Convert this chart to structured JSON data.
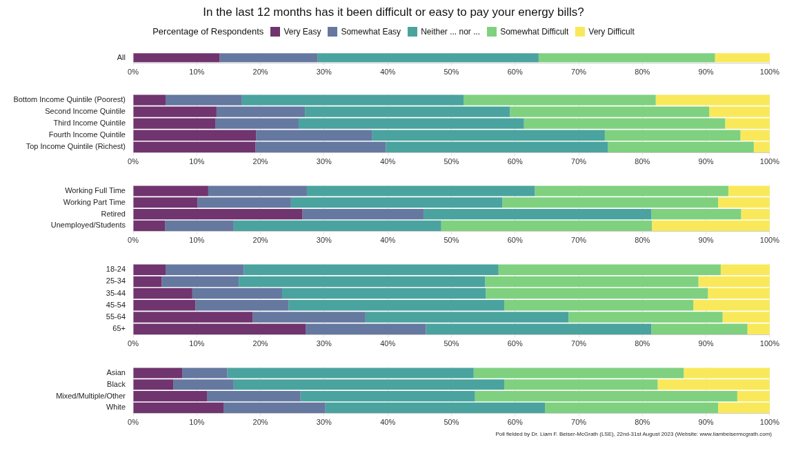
{
  "chart_data": [
    {
      "type": "bar",
      "title": "In the last 12 months has it been difficult or easy to pay your energy bills?",
      "legend_title": "Percentage of Respondents",
      "legend": "top",
      "orientation": "horizontal",
      "stacked": true,
      "grid": "x",
      "categories": [
        "All"
      ],
      "series": [
        {
          "name": "Very Easy",
          "color": "#70346f",
          "values": [
            13.6
          ]
        },
        {
          "name": "Somewhat Easy",
          "color": "#6578a0",
          "values": [
            15.4
          ]
        },
        {
          "name": "Neither ... nor ...",
          "color": "#4aa39e",
          "values": [
            34.7
          ]
        },
        {
          "name": "Somewhat Difficult",
          "color": "#7fd17f",
          "values": [
            27.7
          ]
        },
        {
          "name": "Very Difficult",
          "color": "#f9e95a",
          "values": [
            8.6
          ]
        }
      ],
      "xlim": [
        0,
        100
      ],
      "xticks": [
        {
          "value": 0,
          "label": "0%"
        },
        {
          "value": 10,
          "label": "10%"
        },
        {
          "value": 20,
          "label": "20%"
        },
        {
          "value": 30,
          "label": "30%"
        },
        {
          "value": 40,
          "label": "40%"
        },
        {
          "value": 50,
          "label": "50%"
        },
        {
          "value": 60,
          "label": "60%"
        },
        {
          "value": 70,
          "label": "70%"
        },
        {
          "value": 80,
          "label": "80%"
        },
        {
          "value": 90,
          "label": "90%"
        },
        {
          "value": 100,
          "label": "100%"
        }
      ]
    },
    {
      "type": "bar",
      "orientation": "horizontal",
      "stacked": true,
      "grid": "x",
      "categories": [
        "Bottom Income Quintile (Poorest)",
        "Second Income Quintile",
        "Third Income Quintile",
        "Fourth Income Quintile",
        "Top Income Quintile (Richest)"
      ],
      "series": [
        {
          "color": "#70346f",
          "values": [
            5.1,
            13.1,
            12.9,
            19.3,
            19.2
          ]
        },
        {
          "color": "#6578a0",
          "values": [
            12.0,
            13.9,
            13.1,
            18.2,
            20.5
          ]
        },
        {
          "color": "#4aa39e",
          "values": [
            34.8,
            32.2,
            35.4,
            36.6,
            34.9
          ]
        },
        {
          "color": "#7fd17f",
          "values": [
            30.2,
            31.3,
            31.6,
            21.3,
            22.9
          ]
        },
        {
          "color": "#f9e95a",
          "values": [
            17.9,
            9.5,
            7.0,
            4.6,
            2.5
          ]
        }
      ],
      "xlim": [
        0,
        100
      ],
      "xticks": [
        {
          "value": 0,
          "label": "0%"
        },
        {
          "value": 10,
          "label": "10%"
        },
        {
          "value": 20,
          "label": "20%"
        },
        {
          "value": 30,
          "label": "30%"
        },
        {
          "value": 40,
          "label": "40%"
        },
        {
          "value": 50,
          "label": "50%"
        },
        {
          "value": 60,
          "label": "60%"
        },
        {
          "value": 70,
          "label": "70%"
        },
        {
          "value": 80,
          "label": "80%"
        },
        {
          "value": 90,
          "label": "90%"
        },
        {
          "value": 100,
          "label": "100%"
        }
      ]
    },
    {
      "type": "bar",
      "orientation": "horizontal",
      "stacked": true,
      "grid": "x",
      "categories": [
        "Working Full Time",
        "Working Part Time",
        "Retired",
        "Unemployed/Students"
      ],
      "series": [
        {
          "color": "#70346f",
          "values": [
            11.8,
            10.1,
            26.6,
            5.0
          ]
        },
        {
          "color": "#6578a0",
          "values": [
            15.5,
            14.7,
            19.1,
            10.8
          ]
        },
        {
          "color": "#4aa39e",
          "values": [
            35.8,
            33.2,
            35.7,
            32.6
          ]
        },
        {
          "color": "#7fd17f",
          "values": [
            30.4,
            33.9,
            14.1,
            33.1
          ]
        },
        {
          "color": "#f9e95a",
          "values": [
            6.5,
            8.1,
            4.5,
            18.5
          ]
        }
      ],
      "xlim": [
        0,
        100
      ],
      "xticks": [
        {
          "value": 0,
          "label": "0%"
        },
        {
          "value": 10,
          "label": "10%"
        },
        {
          "value": 20,
          "label": "20%"
        },
        {
          "value": 30,
          "label": "30%"
        },
        {
          "value": 40,
          "label": "40%"
        },
        {
          "value": 50,
          "label": "50%"
        },
        {
          "value": 60,
          "label": "60%"
        },
        {
          "value": 70,
          "label": "70%"
        },
        {
          "value": 80,
          "label": "80%"
        },
        {
          "value": 90,
          "label": "90%"
        },
        {
          "value": 100,
          "label": "100%"
        }
      ]
    },
    {
      "type": "bar",
      "orientation": "horizontal",
      "stacked": true,
      "grid": "x",
      "categories": [
        "18-24",
        "25-34",
        "35-44",
        "45-54",
        "55-64",
        "65+"
      ],
      "series": [
        {
          "color": "#70346f",
          "values": [
            5.1,
            4.5,
            9.3,
            9.8,
            18.8,
            27.1
          ]
        },
        {
          "color": "#6578a0",
          "values": [
            12.3,
            12.1,
            14.1,
            14.6,
            17.7,
            18.9
          ]
        },
        {
          "color": "#4aa39e",
          "values": [
            40.0,
            38.7,
            32.0,
            33.9,
            31.9,
            35.4
          ]
        },
        {
          "color": "#7fd17f",
          "values": [
            34.9,
            33.5,
            34.9,
            29.7,
            24.2,
            15.1
          ]
        },
        {
          "color": "#f9e95a",
          "values": [
            7.7,
            11.2,
            9.7,
            12.0,
            7.4,
            3.5
          ]
        }
      ],
      "xlim": [
        0,
        100
      ],
      "xticks": [
        {
          "value": 0,
          "label": "0%"
        },
        {
          "value": 10,
          "label": "10%"
        },
        {
          "value": 20,
          "label": "20%"
        },
        {
          "value": 30,
          "label": "30%"
        },
        {
          "value": 40,
          "label": "40%"
        },
        {
          "value": 50,
          "label": "50%"
        },
        {
          "value": 60,
          "label": "60%"
        },
        {
          "value": 70,
          "label": "70%"
        },
        {
          "value": 80,
          "label": "80%"
        },
        {
          "value": 90,
          "label": "90%"
        },
        {
          "value": 100,
          "label": "100%"
        }
      ]
    },
    {
      "type": "bar",
      "orientation": "horizontal",
      "stacked": true,
      "grid": "x",
      "categories": [
        "Asian",
        "Black",
        "Mixed/Multiple/Other",
        "White"
      ],
      "series": [
        {
          "color": "#70346f",
          "values": [
            7.7,
            6.3,
            11.6,
            14.2
          ]
        },
        {
          "color": "#6578a0",
          "values": [
            7.1,
            9.5,
            14.7,
            16.0
          ]
        },
        {
          "color": "#4aa39e",
          "values": [
            38.7,
            42.5,
            27.4,
            34.5
          ]
        },
        {
          "color": "#7fd17f",
          "values": [
            33.0,
            24.1,
            41.2,
            27.2
          ]
        },
        {
          "color": "#f9e95a",
          "values": [
            13.5,
            17.6,
            5.1,
            8.1
          ]
        }
      ],
      "xlim": [
        0,
        100
      ],
      "xticks": [
        {
          "value": 0,
          "label": "0%"
        },
        {
          "value": 10,
          "label": "10%"
        },
        {
          "value": 20,
          "label": "20%"
        },
        {
          "value": 30,
          "label": "30%"
        },
        {
          "value": 40,
          "label": "40%"
        },
        {
          "value": 50,
          "label": "50%"
        },
        {
          "value": 60,
          "label": "60%"
        },
        {
          "value": 70,
          "label": "70%"
        },
        {
          "value": 80,
          "label": "80%"
        },
        {
          "value": 90,
          "label": "90%"
        },
        {
          "value": 100,
          "label": "100%"
        }
      ],
      "annotations": [
        "Poll fielded by Dr. Liam F. Beiser-McGrath (LSE), 22nd-31st August 2023 (Website: www.liambeisermcgrath.com)"
      ]
    }
  ]
}
